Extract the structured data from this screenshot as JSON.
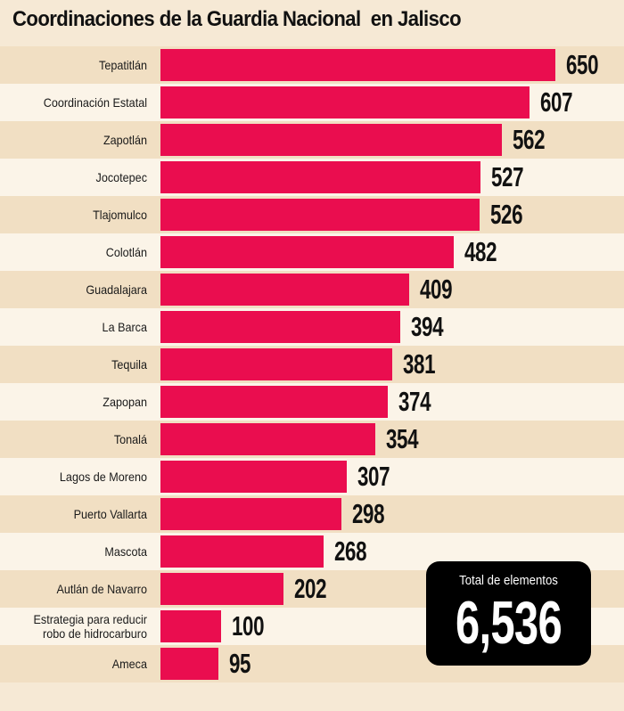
{
  "title": "Coordinaciones de la Guardia Nacional  en Jalisco",
  "chart_data": {
    "type": "bar",
    "orientation": "horizontal",
    "title": "Coordinaciones de la Guardia Nacional  en Jalisco",
    "xlabel": "",
    "ylabel": "",
    "xlim": [
      0,
      650
    ],
    "grid": false,
    "colors": {
      "bar": "#ea0d4f",
      "row_a": "#f1dfc3",
      "row_b": "#fbf4e8",
      "background": "#f6e9d5"
    },
    "categories": [
      "Tepatitlán",
      "Coordinación Estatal",
      "Zapotlán",
      "Jocotepec",
      "Tlajomulco",
      "Colotlán",
      "Guadalajara",
      "La Barca",
      "Tequila",
      "Zapopan",
      "Tonalá",
      "Lagos de Moreno",
      "Puerto Vallarta",
      "Mascota",
      "Autlán de Navarro",
      "Estrategia para reducir robo de hidrocarburo",
      "Ameca"
    ],
    "values": [
      650,
      607,
      562,
      527,
      526,
      482,
      409,
      394,
      381,
      374,
      354,
      307,
      298,
      268,
      202,
      100,
      95
    ],
    "value_labels": [
      "650",
      "607",
      "562",
      "527",
      "526",
      "482",
      "409",
      "394",
      "381",
      "374",
      "354",
      "307",
      "298",
      "268",
      "202",
      "100",
      "95"
    ]
  },
  "total": {
    "label": "Total de elementos",
    "value": "6,536"
  }
}
